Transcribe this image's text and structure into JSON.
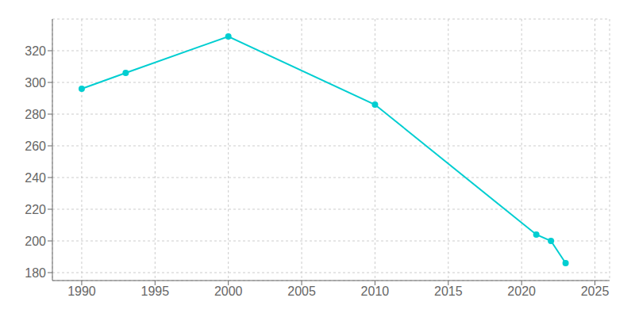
{
  "chart_data": {
    "type": "line",
    "x": [
      1990,
      1993,
      2000,
      2010,
      2021,
      2022,
      2023
    ],
    "values": [
      296,
      306,
      329,
      286,
      204,
      200,
      186
    ],
    "color": "#00CED1",
    "marker": "circle",
    "xlim": [
      1988,
      2026
    ],
    "ylim": [
      175,
      340
    ],
    "xticks": [
      1990,
      1995,
      2000,
      2005,
      2010,
      2015,
      2020,
      2025
    ],
    "yticks": [
      180,
      200,
      220,
      240,
      260,
      280,
      300,
      320
    ],
    "grid": true
  }
}
